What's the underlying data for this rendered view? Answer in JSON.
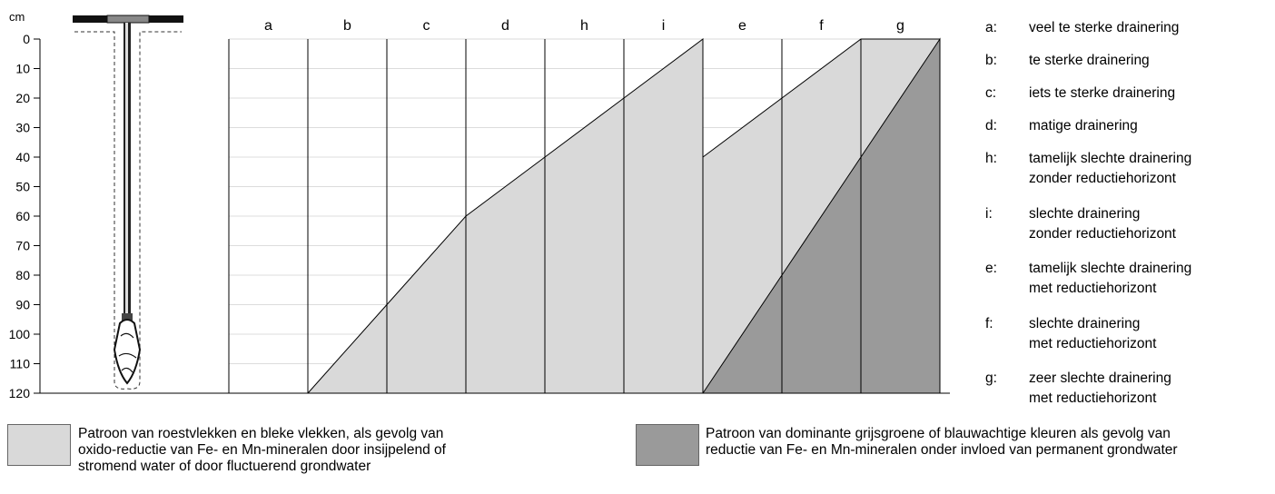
{
  "axis": {
    "unit": "cm",
    "ticks": [
      0,
      10,
      20,
      30,
      40,
      50,
      60,
      70,
      80,
      90,
      100,
      110,
      120
    ]
  },
  "columns": [
    "a",
    "b",
    "c",
    "d",
    "h",
    "i",
    "e",
    "f",
    "g"
  ],
  "profiles": {
    "light_upper": {
      "from_col_boundary_index": 1,
      "depths_cm": [
        120,
        90,
        60,
        40,
        20,
        0
      ]
    },
    "light_lower_start_depth_cm": 40,
    "dark_boundary": {
      "depths_cm": [
        120,
        80,
        40,
        0
      ]
    }
  },
  "legend": [
    {
      "code": "a:",
      "lines": [
        "veel te sterke drainering"
      ]
    },
    {
      "code": "b:",
      "lines": [
        "te sterke drainering"
      ]
    },
    {
      "code": "c:",
      "lines": [
        "iets te sterke drainering"
      ]
    },
    {
      "code": "d:",
      "lines": [
        "matige drainering"
      ]
    },
    {
      "code": "h:",
      "lines": [
        "tamelijk slechte drainering",
        "zonder reductiehorizont"
      ]
    },
    {
      "code": "i:",
      "lines": [
        "slechte drainering",
        "zonder reductiehorizont"
      ]
    },
    {
      "code": "e:",
      "lines": [
        "tamelijk slechte drainering",
        "met reductiehorizont"
      ]
    },
    {
      "code": "f:",
      "lines": [
        "slechte drainering",
        "met reductiehorizont"
      ]
    },
    {
      "code": "g:",
      "lines": [
        "zeer slechte drainering",
        "met reductiehorizont"
      ]
    }
  ],
  "patterns": {
    "light": {
      "color": "#d9d9d9",
      "lines": [
        "Patroon van roestvlekken en bleke vlekken, als gevolg van",
        "oxido-reductie van Fe- en Mn-mineralen door insijpelend of",
        "stromend water of door fluctuerend grondwater"
      ]
    },
    "dark": {
      "color": "#9a9a9a",
      "lines": [
        "Patroon van dominante grijsgroene of blauwachtige kleuren als gevolg van",
        "reductie van Fe- en Mn-mineralen onder invloed van permanent grondwater"
      ]
    }
  }
}
